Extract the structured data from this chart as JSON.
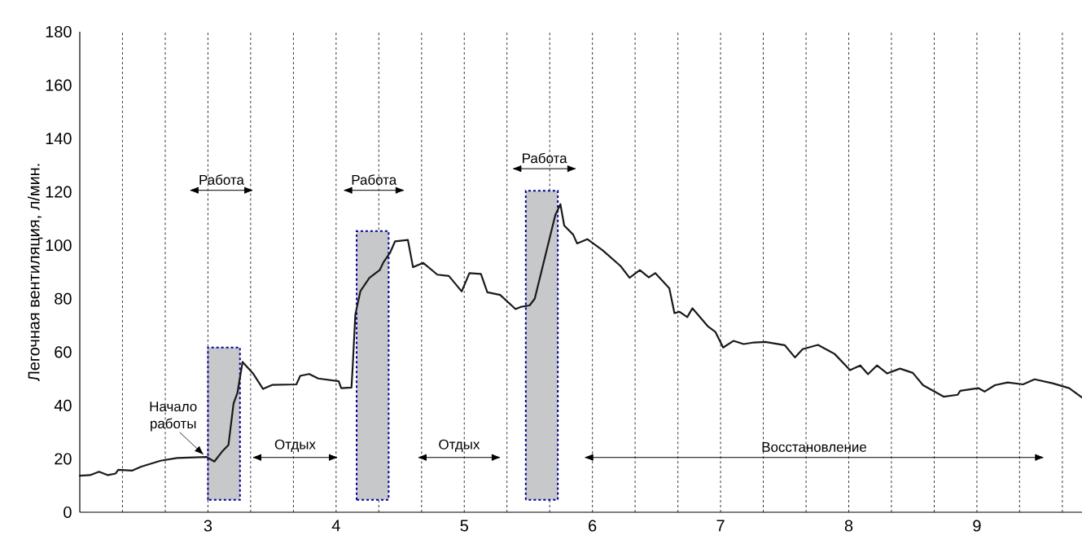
{
  "chart_data": {
    "type": "line",
    "ylabel": "Легочная вентиляция, л/мин.",
    "xlim": [
      2,
      9.82
    ],
    "ylim": [
      0,
      180
    ],
    "xticks": [
      {
        "value": 2.333,
        "label": null
      },
      {
        "value": 2.667,
        "label": null
      },
      3,
      {
        "value": 3.333,
        "label": null
      },
      {
        "value": 3.667,
        "label": null
      },
      4,
      {
        "value": 4.333,
        "label": null
      },
      {
        "value": 4.667,
        "label": null
      },
      5,
      {
        "value": 5.333,
        "label": null
      },
      {
        "value": 5.667,
        "label": null
      },
      6,
      {
        "value": 6.333,
        "label": null
      },
      {
        "value": 6.667,
        "label": null
      },
      7,
      {
        "value": 7.333,
        "label": null
      },
      {
        "value": 7.667,
        "label": null
      },
      8,
      {
        "value": 8.333,
        "label": null
      },
      {
        "value": 8.667,
        "label": null
      },
      9,
      {
        "value": 9.333,
        "label": null
      },
      {
        "value": 9.667,
        "label": null
      }
    ],
    "yticks": [
      0,
      20,
      40,
      60,
      80,
      100,
      120,
      140,
      160,
      180
    ],
    "grid": "x",
    "series": [
      {
        "color": "#1a1a1a",
        "line_style": "solid",
        "x": [
          2.0,
          2.08,
          2.15,
          2.22,
          2.28,
          2.3,
          2.41,
          2.48,
          2.63,
          2.76,
          2.99,
          3.05,
          3.11,
          3.16,
          3.2,
          3.23,
          3.27,
          3.35,
          3.43,
          3.5,
          3.69,
          3.72,
          3.79,
          3.86,
          4.02,
          4.04,
          4.12,
          4.13,
          4.15,
          4.19,
          4.26,
          4.34,
          4.37,
          4.42,
          4.46,
          4.56,
          4.6,
          4.68,
          4.79,
          4.88,
          4.98,
          5.04,
          5.13,
          5.18,
          5.28,
          5.4,
          5.44,
          5.51,
          5.55,
          5.68,
          5.71,
          5.75,
          5.78,
          5.85,
          5.88,
          5.96,
          6.08,
          6.22,
          6.29,
          6.37,
          6.44,
          6.49,
          6.6,
          6.64,
          6.68,
          6.74,
          6.78,
          6.9,
          6.96,
          7.02,
          7.1,
          7.18,
          7.26,
          7.35,
          7.5,
          7.58,
          7.64,
          7.76,
          7.89,
          8.01,
          8.09,
          8.15,
          8.22,
          8.3,
          8.4,
          8.5,
          8.58,
          8.74,
          8.85,
          8.87,
          9.01,
          9.06,
          9.14,
          9.24,
          9.36,
          9.45,
          9.59,
          9.72,
          9.82
        ],
        "values": [
          13.7,
          13.9,
          15.2,
          13.9,
          14.5,
          15.9,
          15.6,
          17.1,
          19.3,
          20.3,
          20.7,
          19.0,
          22.7,
          25.2,
          40.8,
          44.7,
          56.3,
          52.1,
          46.2,
          47.7,
          47.9,
          51.1,
          51.8,
          50.1,
          49.1,
          46.5,
          46.7,
          55.0,
          74.1,
          82.9,
          87.8,
          90.7,
          93.7,
          97.1,
          101.5,
          102.0,
          91.8,
          93.4,
          89.0,
          88.5,
          82.7,
          89.6,
          89.3,
          82.4,
          81.4,
          76.1,
          76.9,
          77.5,
          80.0,
          105.4,
          111.3,
          115.4,
          107.4,
          104.0,
          100.7,
          102.3,
          98.1,
          92.2,
          87.8,
          90.7,
          88.0,
          89.6,
          83.9,
          74.6,
          75.1,
          73.1,
          76.4,
          69.7,
          67.5,
          61.7,
          64.2,
          63.0,
          63.6,
          63.8,
          62.6,
          58.0,
          61.1,
          62.7,
          59.3,
          53.2,
          55.0,
          51.7,
          55.0,
          52.0,
          53.8,
          52.2,
          47.6,
          43.3,
          44.0,
          45.5,
          46.5,
          45.2,
          47.6,
          48.6,
          47.9,
          49.8,
          48.3,
          46.5,
          43.0
        ]
      }
    ],
    "bands": [
      {
        "axis": "x",
        "from": 3.0,
        "to": 3.25,
        "color": "#c7c8ca"
      },
      {
        "axis": "x",
        "from": 4.16,
        "to": 4.41,
        "color": "#c7c8ca"
      },
      {
        "axis": "x",
        "from": 5.48,
        "to": 5.73,
        "color": "#c7c8ca"
      }
    ],
    "annotations": [
      {
        "text": "Начало работы",
        "x": 2.97,
        "y": 21.4
      },
      "Работа",
      "Работа",
      "Работа",
      "Отдых",
      "Отдых",
      "Восстановление"
    ]
  }
}
